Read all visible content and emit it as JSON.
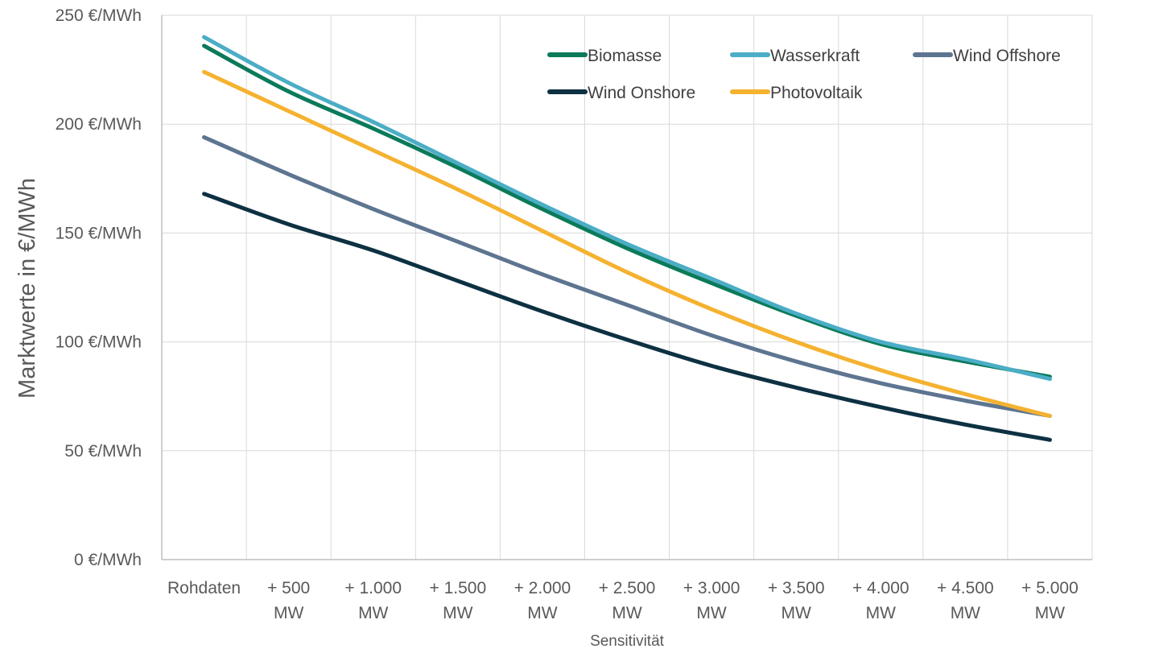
{
  "chart_data": {
    "type": "line",
    "xlabel": "Sensitivität",
    "ylabel": "Marktwerte in €/MWh",
    "ylim": [
      0,
      250
    ],
    "yticks": [
      {
        "value": 0,
        "label": "0 €/MWh"
      },
      {
        "value": 50,
        "label": "50 €/MWh"
      },
      {
        "value": 100,
        "label": "100 €/MWh"
      },
      {
        "value": 150,
        "label": "150 €/MWh"
      },
      {
        "value": 200,
        "label": "200 €/MWh"
      },
      {
        "value": 250,
        "label": "250 €/MWh"
      }
    ],
    "categories": [
      [
        "Rohdaten"
      ],
      [
        "+ 500",
        "MW"
      ],
      [
        "+ 1.000",
        "MW"
      ],
      [
        "+ 1.500",
        "MW"
      ],
      [
        "+ 2.000",
        "MW"
      ],
      [
        "+ 2.500",
        "MW"
      ],
      [
        "+ 3.000",
        "MW"
      ],
      [
        "+ 3.500",
        "MW"
      ],
      [
        "+ 4.000",
        "MW"
      ],
      [
        "+ 4.500",
        "MW"
      ],
      [
        "+ 5.000",
        "MW"
      ]
    ],
    "grid": true,
    "legend_position": "top-right",
    "series": [
      {
        "name": "Biomasse",
        "color": "#0b7a5a",
        "values": [
          236,
          215,
          198,
          180,
          161,
          143,
          127,
          112,
          99,
          91,
          84
        ]
      },
      {
        "name": "Wasserkraft",
        "color": "#4badc6",
        "values": [
          240,
          219,
          201,
          182,
          163,
          145,
          129,
          113,
          100,
          92,
          83
        ]
      },
      {
        "name": "Wind Offshore",
        "color": "#5d7590",
        "values": [
          194,
          177,
          161,
          146,
          131,
          117,
          103,
          91,
          81,
          73,
          66
        ]
      },
      {
        "name": "Wind Onshore",
        "color": "#0d3142",
        "values": [
          168,
          154,
          142,
          128,
          114,
          101,
          89,
          79,
          70,
          62,
          55
        ]
      },
      {
        "name": "Photovoltaik",
        "color": "#f5b230",
        "values": [
          224,
          206,
          188,
          170,
          151,
          132,
          115,
          100,
          87,
          76,
          66
        ]
      }
    ]
  }
}
